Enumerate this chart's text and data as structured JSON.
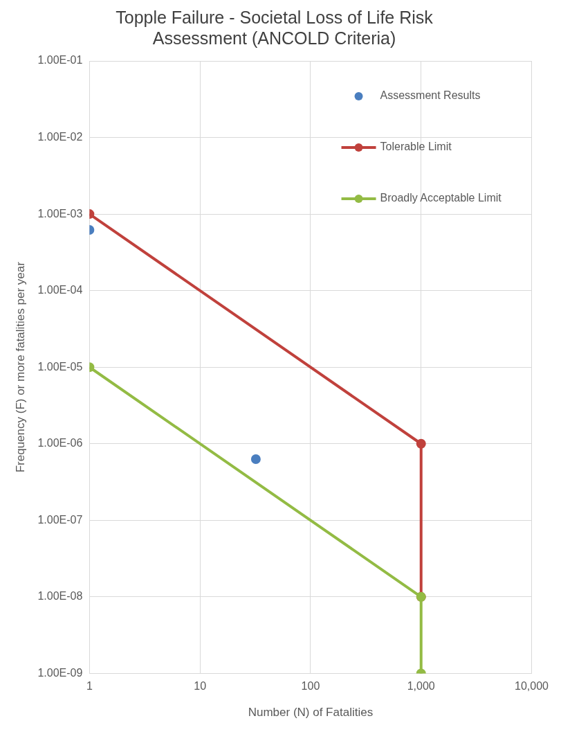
{
  "chart_data": {
    "type": "scatter",
    "title": [
      "Topple Failure - Societal Loss of Life Risk",
      "Assessment (ANCOLD Criteria)"
    ],
    "xlabel": "Number (N) of Fatalities",
    "ylabel": "Frequency (F) or more fatalities per year",
    "log": "xy",
    "xlim": [
      1,
      10000
    ],
    "xticks": [
      1,
      10,
      100,
      {
        "value": 1000,
        "label": "1,000"
      },
      {
        "value": 10000,
        "label": "10,000"
      }
    ],
    "ylim": [
      1e-09,
      0.1
    ],
    "yticks": [
      {
        "value": 1e-09,
        "label": "1.00E-09"
      },
      {
        "value": 1e-08,
        "label": "1.00E-08"
      },
      {
        "value": 1e-07,
        "label": "1.00E-07"
      },
      {
        "value": 1e-06,
        "label": "1.00E-06"
      },
      {
        "value": 1e-05,
        "label": "1.00E-05"
      },
      {
        "value": 0.0001,
        "label": "1.00E-04"
      },
      {
        "value": 0.001,
        "label": "1.00E-03"
      },
      {
        "value": 0.01,
        "label": "1.00E-02"
      },
      {
        "value": 0.1,
        "label": "1.00E-01"
      }
    ],
    "grid": true,
    "legend": "top right",
    "marker": "circle",
    "series": [
      {
        "name": "Assessment Results",
        "type": "scatter",
        "color": "#4a7ebf",
        "x": [
          1,
          32
        ],
        "values": [
          0.00062,
          6.3e-07
        ]
      },
      {
        "name": "Tolerable Limit",
        "type": "line",
        "color": "#c0413c",
        "x": [
          1,
          1000,
          1000
        ],
        "values": [
          0.001,
          1e-06,
          1e-08
        ]
      },
      {
        "name": "Broadly Acceptable Limit",
        "type": "line",
        "color": "#93bb44",
        "x": [
          1,
          1000,
          1000
        ],
        "values": [
          1e-05,
          1e-08,
          1e-09
        ]
      }
    ]
  }
}
